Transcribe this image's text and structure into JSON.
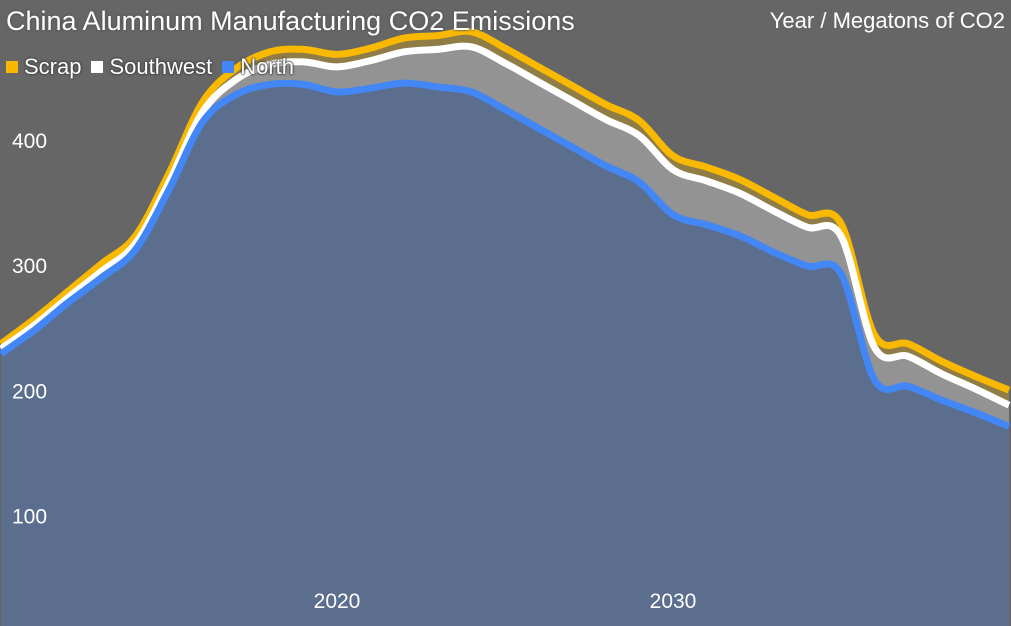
{
  "chart_data": {
    "type": "area",
    "stacked": true,
    "title": "China Aluminum Manufacturing CO2 Emissions",
    "subtitle": "Year / Megatons of CO2",
    "x": [
      2010,
      2011,
      2012,
      2013,
      2014,
      2015,
      2016,
      2017,
      2018,
      2019,
      2020,
      2021,
      2022,
      2023,
      2024,
      2025,
      2026,
      2027,
      2028,
      2029,
      2030,
      2031,
      2032,
      2033,
      2034,
      2035,
      2036,
      2037,
      2038,
      2039,
      2040
    ],
    "x_ticks": [
      2020,
      2030
    ],
    "y_ticks": [
      100,
      200,
      300,
      400
    ],
    "xlim": [
      2010,
      2040
    ],
    "ylim": [
      0,
      500
    ],
    "grid": false,
    "legend_position": "top-left",
    "series": [
      {
        "name": "North",
        "color": "#4287f5",
        "fill": "#5b6e8d",
        "values": [
          230,
          249,
          271,
          291,
          313,
          361,
          415,
          437,
          445,
          445,
          439,
          442,
          446,
          443,
          439,
          425,
          410,
          395,
          380,
          367,
          341,
          333,
          324,
          311,
          300,
          294,
          209,
          204,
          193,
          183,
          172
        ]
      },
      {
        "name": "Southwest",
        "color": "#ffffff",
        "fill": "#939393",
        "values": [
          4,
          4,
          4,
          5,
          5,
          6,
          8,
          12,
          16,
          18,
          20,
          22,
          25,
          30,
          36,
          37,
          37,
          37,
          37,
          37,
          36,
          35,
          34,
          33,
          31,
          30,
          26,
          24,
          21,
          19,
          17
        ]
      },
      {
        "name": "Scrap",
        "color": "#f9b900",
        "fill": "#8f7d45",
        "values": [
          4,
          5,
          5,
          6,
          6,
          7,
          8,
          9,
          10,
          10,
          10,
          10,
          11,
          11,
          12,
          12,
          12,
          12,
          12,
          12,
          11,
          11,
          11,
          11,
          10,
          10,
          10,
          10,
          10,
          10,
          12
        ]
      }
    ]
  },
  "legend": [
    {
      "label": "Scrap",
      "color": "#f9b900"
    },
    {
      "label": "Southwest",
      "color": "#ffffff"
    },
    {
      "label": "North",
      "color": "#4287f5"
    }
  ],
  "background": "#666666"
}
